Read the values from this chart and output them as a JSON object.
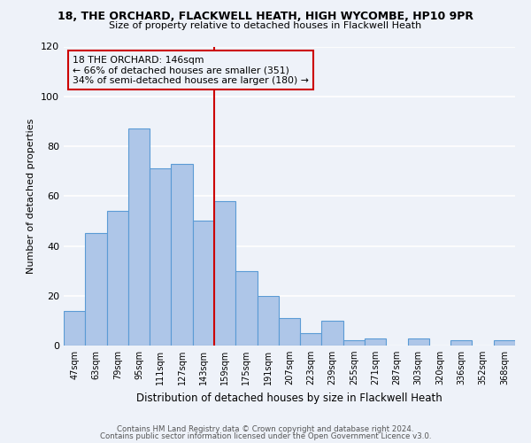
{
  "title": "18, THE ORCHARD, FLACKWELL HEATH, HIGH WYCOMBE, HP10 9PR",
  "subtitle": "Size of property relative to detached houses in Flackwell Heath",
  "xlabel": "Distribution of detached houses by size in Flackwell Heath",
  "ylabel": "Number of detached properties",
  "footer_line1": "Contains HM Land Registry data © Crown copyright and database right 2024.",
  "footer_line2": "Contains public sector information licensed under the Open Government Licence v3.0.",
  "bin_labels": [
    "47sqm",
    "63sqm",
    "79sqm",
    "95sqm",
    "111sqm",
    "127sqm",
    "143sqm",
    "159sqm",
    "175sqm",
    "191sqm",
    "207sqm",
    "223sqm",
    "239sqm",
    "255sqm",
    "271sqm",
    "287sqm",
    "303sqm",
    "320sqm",
    "336sqm",
    "352sqm",
    "368sqm"
  ],
  "bin_values": [
    14,
    45,
    54,
    87,
    71,
    73,
    50,
    58,
    30,
    20,
    11,
    5,
    10,
    2,
    3,
    0,
    3,
    0,
    2,
    0,
    2
  ],
  "bar_color": "#aec6e8",
  "bar_edge_color": "#5b9bd5",
  "background_color": "#eef2f9",
  "grid_color": "#ffffff",
  "vline_x_index": 6.5,
  "vline_color": "#cc0000",
  "annotation_line1": "18 THE ORCHARD: 146sqm",
  "annotation_line2": "← 66% of detached houses are smaller (351)",
  "annotation_line3": "34% of semi-detached houses are larger (180) →",
  "annotation_box_color": "#cc0000",
  "ylim": [
    0,
    120
  ],
  "yticks": [
    0,
    20,
    40,
    60,
    80,
    100,
    120
  ]
}
